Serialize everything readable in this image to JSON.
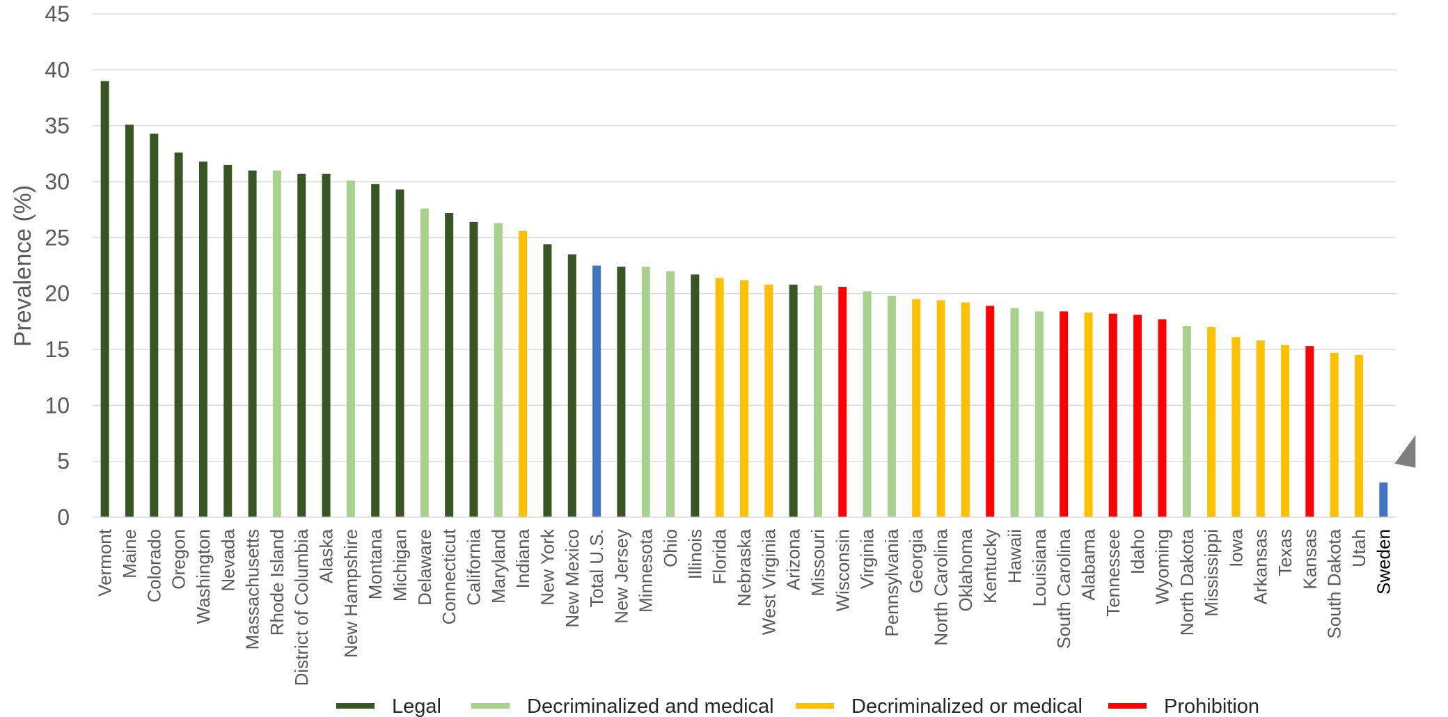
{
  "chart_data": {
    "type": "bar",
    "ylabel": "Prevalence (%)",
    "xlabel": "",
    "ylim": [
      0,
      45
    ],
    "yticks": [
      0,
      5,
      10,
      15,
      20,
      25,
      30,
      35,
      40,
      45
    ],
    "grid": true,
    "legend_position": "bottom",
    "colors": {
      "Legal": "#375623",
      "Decriminalized and medical": "#A9D18E",
      "Decriminalized or medical": "#FFC000",
      "Prohibition": "#FF0000",
      "Reference": "#4472C4"
    },
    "legend": [
      "Legal",
      "Decriminalized and medical",
      "Decriminalized or medical",
      "Prohibition"
    ],
    "categories": [
      "Vermont",
      "Maine",
      "Colorado",
      "Oregon",
      "Washington",
      "Nevada",
      "Massachusetts",
      "Rhode Island",
      "District of Columbia",
      "Alaska",
      "New Hampshire",
      "Montana",
      "Michigan",
      "Delaware",
      "Connecticut",
      "California",
      "Maryland",
      "Indiana",
      "New York",
      "New Mexico",
      "Total U.S.",
      "New Jersey",
      "Minnesota",
      "Ohio",
      "Illinois",
      "Florida",
      "Nebraska",
      "West Virginia",
      "Arizona",
      "Missouri",
      "Wisconsin",
      "Virginia",
      "Pennsylvania",
      "Georgia",
      "North Carolina",
      "Oklahoma",
      "Kentucky",
      "Hawaii",
      "Louisiana",
      "South Carolina",
      "Alabama",
      "Tennessee",
      "Idaho",
      "Wyoming",
      "North Dakota",
      "Mississippi",
      "Iowa",
      "Arkansas",
      "Texas",
      "Kansas",
      "South Dakota",
      "Utah",
      "Sweden"
    ],
    "values": [
      39.0,
      35.1,
      34.3,
      32.6,
      31.8,
      31.5,
      31.0,
      31.0,
      30.7,
      30.7,
      30.1,
      29.8,
      29.3,
      27.6,
      27.2,
      26.4,
      26.3,
      25.6,
      24.4,
      23.5,
      22.5,
      22.4,
      22.4,
      22.0,
      21.7,
      21.4,
      21.2,
      20.8,
      20.8,
      20.7,
      20.6,
      20.2,
      19.8,
      19.5,
      19.4,
      19.2,
      18.9,
      18.7,
      18.4,
      18.4,
      18.3,
      18.2,
      18.1,
      17.7,
      17.1,
      17.0,
      16.1,
      15.8,
      15.4,
      15.3,
      14.7,
      14.5,
      3.1
    ],
    "status": [
      "Legal",
      "Legal",
      "Legal",
      "Legal",
      "Legal",
      "Legal",
      "Legal",
      "Decriminalized and medical",
      "Legal",
      "Legal",
      "Decriminalized and medical",
      "Legal",
      "Legal",
      "Decriminalized and medical",
      "Legal",
      "Legal",
      "Decriminalized and medical",
      "Decriminalized or medical",
      "Legal",
      "Legal",
      "Reference",
      "Legal",
      "Decriminalized and medical",
      "Decriminalized and medical",
      "Legal",
      "Decriminalized or medical",
      "Decriminalized or medical",
      "Decriminalized or medical",
      "Legal",
      "Decriminalized and medical",
      "Prohibition",
      "Decriminalized and medical",
      "Decriminalized and medical",
      "Decriminalized or medical",
      "Decriminalized or medical",
      "Decriminalized or medical",
      "Prohibition",
      "Decriminalized and medical",
      "Decriminalized and medical",
      "Prohibition",
      "Decriminalized or medical",
      "Prohibition",
      "Prohibition",
      "Prohibition",
      "Decriminalized and medical",
      "Decriminalized or medical",
      "Decriminalized or medical",
      "Decriminalized or medical",
      "Decriminalized or medical",
      "Prohibition",
      "Decriminalized or medical",
      "Decriminalized or medical",
      "Reference"
    ],
    "highlight_category": "Sweden"
  }
}
